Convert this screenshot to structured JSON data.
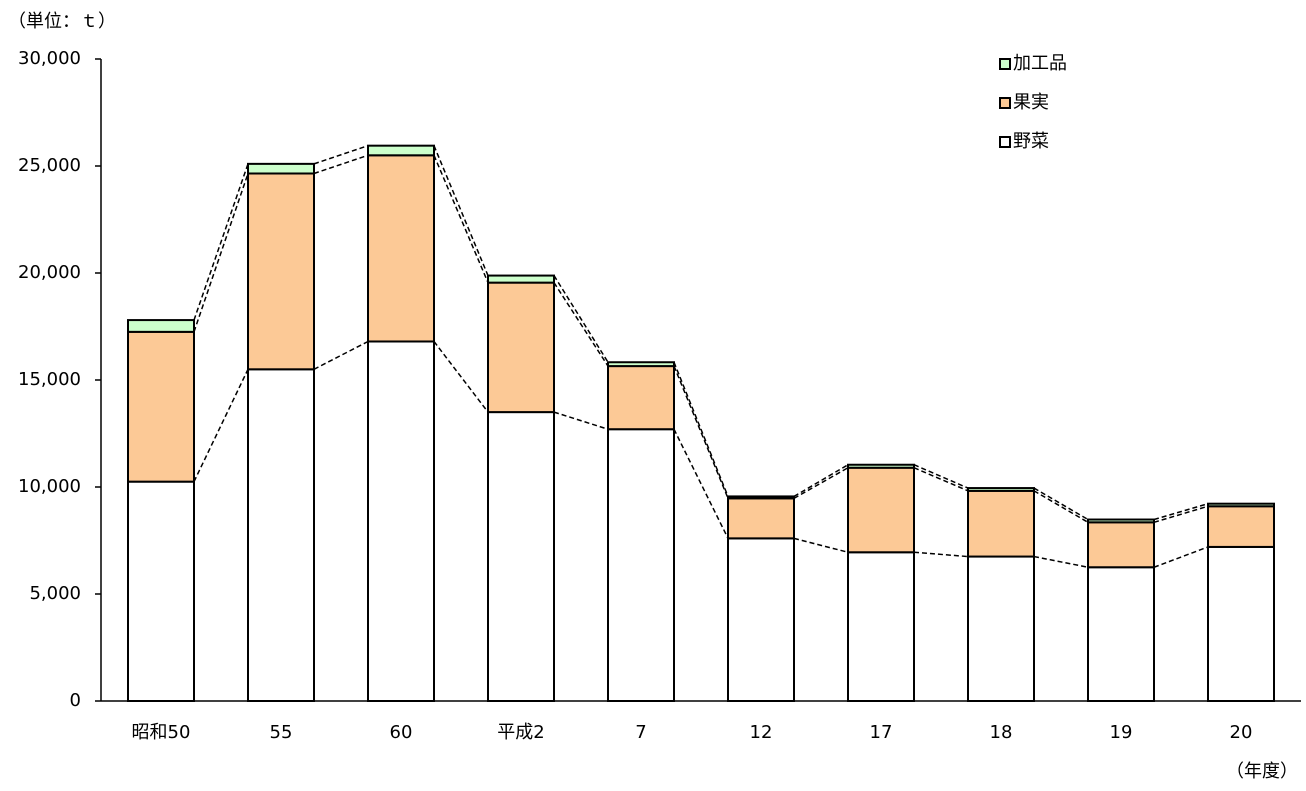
{
  "chart_data": {
    "type": "stacked_bar",
    "y_label": "（単位：ｔ）",
    "x_label": "（年度）",
    "categories": [
      "昭和50",
      "55",
      "60",
      "平成2",
      "7",
      "12",
      "17",
      "18",
      "19",
      "20"
    ],
    "series": [
      {
        "name": "野菜",
        "color": "#ffffff",
        "values": [
          10250,
          15500,
          16800,
          13500,
          12700,
          7600,
          6950,
          6750,
          6250,
          7200
        ]
      },
      {
        "name": "果実",
        "color": "#fcc996",
        "values": [
          7000,
          9150,
          8700,
          6050,
          2950,
          1870,
          3950,
          3070,
          2100,
          1900
        ]
      },
      {
        "name": "加工品",
        "color": "#ccffcc",
        "values": [
          550,
          450,
          450,
          330,
          180,
          90,
          140,
          130,
          130,
          120
        ]
      }
    ],
    "ylim": [
      0,
      30000
    ],
    "yticks": [
      0,
      {
        "value": 5000,
        "label": "5,000"
      },
      {
        "value": 10000,
        "label": "10,000"
      },
      {
        "value": 15000,
        "label": "15,000"
      },
      {
        "value": 20000,
        "label": "20,000"
      },
      {
        "value": 25000,
        "label": "25,000"
      },
      {
        "value": 30000,
        "label": "30,000"
      }
    ],
    "legend": "upper right",
    "connectors": true
  }
}
